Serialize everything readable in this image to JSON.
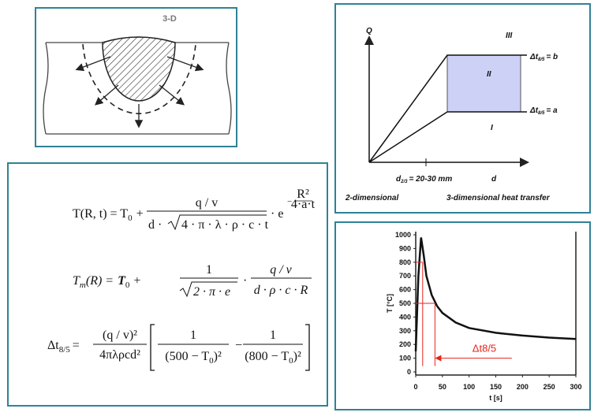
{
  "weld_diagram": {
    "label": "3-D"
  },
  "formulas": [
    {
      "lhs": "T(R, t) = T",
      "lhs_sub": "0",
      "plus": "+",
      "numerator": "q / v",
      "den_prefix": "d ·",
      "radicand": "4 · π · λ · ρ · c · t",
      "factor": "· e",
      "exp_sign": "−",
      "exp_numerator": "R²",
      "exp_denominator": "4·a·t"
    },
    {
      "lhs": "T",
      "lhs_sub": "m",
      "lhs_rest": "(R) =",
      "t0": "T",
      "t0_sub": "0",
      "plus": "+",
      "numerator": "1",
      "radicand": "2 · π · e",
      "dot": "·",
      "numerator2": "q / v",
      "denominator2": "d · ρ · c · R"
    },
    {
      "lhs": "Δt",
      "lhs_sub": "8/5",
      "eq": "=",
      "numerator": "(q / v)²",
      "denominator": "4πλρcd²",
      "one_a": "1",
      "den_a": "(500 − T",
      "den_a_sub": "0",
      "den_a_end": ")²",
      "minus": "−",
      "one_b": "1",
      "den_b": "(800 − T",
      "den_b_sub": "0",
      "den_b_end": ")²"
    }
  ],
  "regime_diagram": {
    "axis_q": "Q",
    "regions": [
      "I",
      "II",
      "III"
    ],
    "line_b": {
      "symbol": "Δt",
      "subscript": "8/5",
      "rest": "= b"
    },
    "line_a": {
      "symbol": "Δt",
      "subscript": "8/5",
      "rest": "= a"
    },
    "thickness": {
      "symbol": "d",
      "subscript": "2/3",
      "rest": "= 20-30 mm"
    },
    "axis_d": "d",
    "label_2d": "2-dimensional",
    "label_3d": "3-dimensional heat transfer"
  },
  "chart_data": {
    "type": "line",
    "x_label": "t [s]",
    "y_label": "T [°C]",
    "x": [
      0,
      5,
      10,
      15,
      20,
      30,
      40,
      50,
      75,
      100,
      150,
      200,
      250,
      300
    ],
    "values": [
      150,
      700,
      980,
      850,
      700,
      560,
      480,
      430,
      360,
      320,
      285,
      265,
      250,
      240
    ],
    "color": "#111111",
    "xlim": [
      0,
      300
    ],
    "ylim": [
      0,
      1000
    ],
    "xticks": [
      0,
      50,
      100,
      150,
      200,
      250,
      300
    ],
    "yticks": [
      0,
      100,
      200,
      300,
      400,
      500,
      600,
      700,
      800,
      900,
      1000
    ],
    "reference_lines": [
      {
        "y": 800,
        "x": 13
      },
      {
        "y": 500,
        "x": 36
      }
    ],
    "reference_color": "#e8231b",
    "annotation": {
      "text": "Δt8/5",
      "y": 100,
      "x_end": 180
    }
  }
}
